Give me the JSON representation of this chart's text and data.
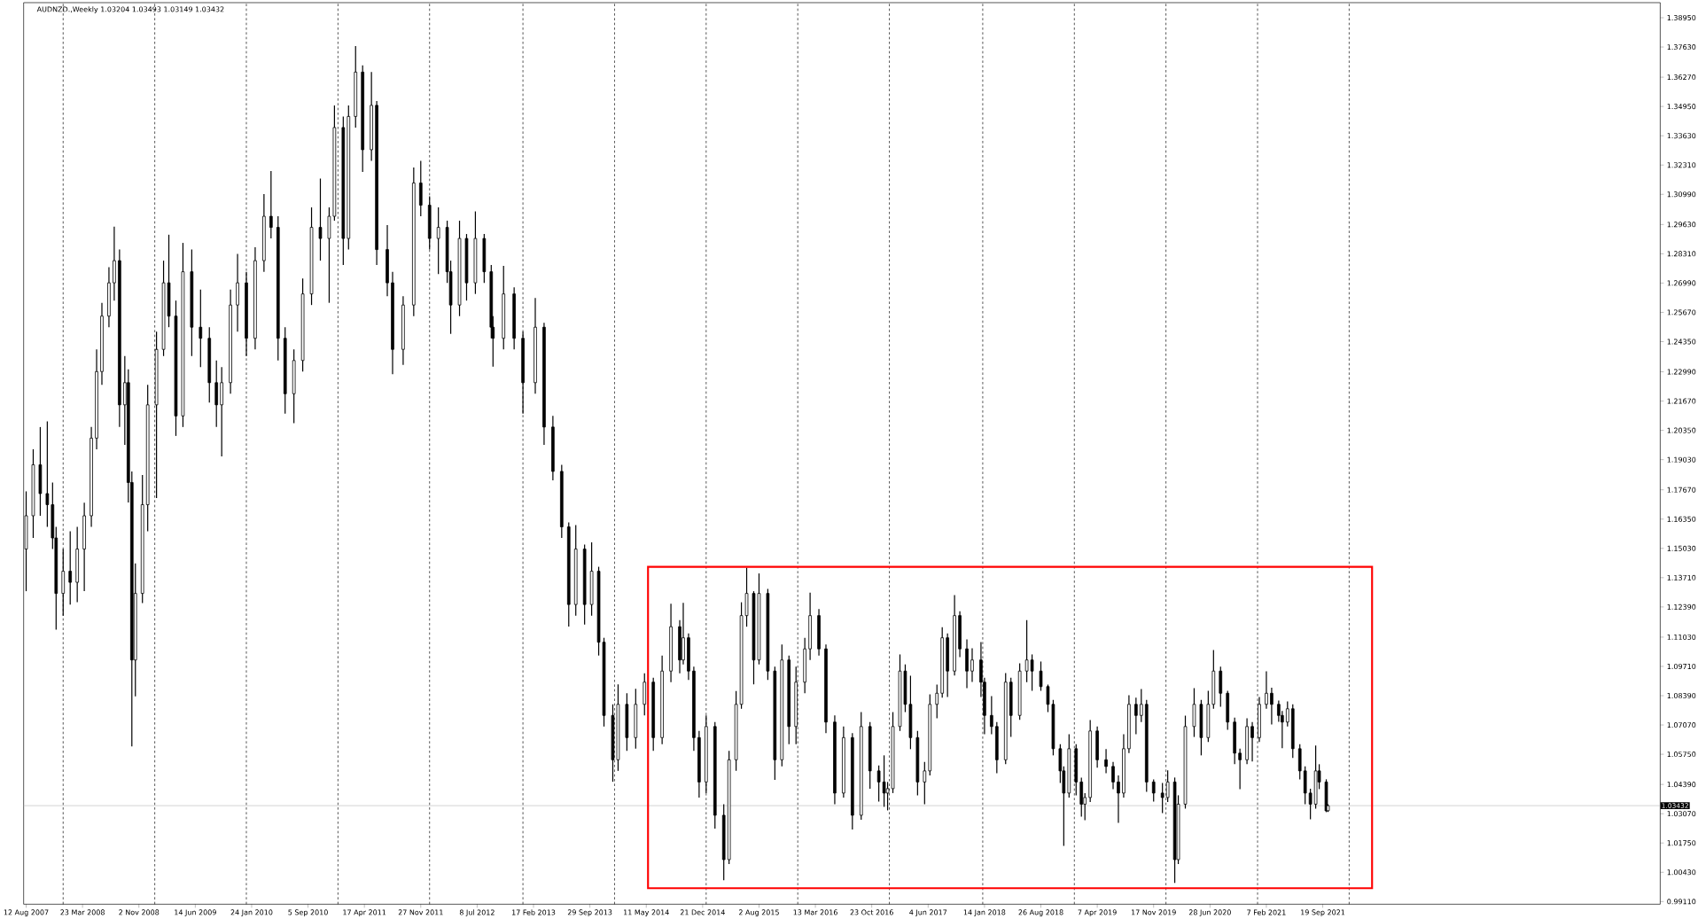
{
  "chart_data": {
    "type": "candlestick",
    "title": "AUDNZD.,Weekly 1.03204 1.03493 1.03149 1.03432",
    "xlim": [
      "2007-08-02",
      "2025-05-22"
    ],
    "ylim": [
      0.9899,
      1.3963
    ],
    "xticks": [
      {
        "value": "2007-08-12",
        "label": "12 Aug 2007"
      },
      {
        "value": "2008-03-23",
        "label": "23 Mar 2008"
      },
      {
        "value": "2008-11-02",
        "label": "2 Nov 2008"
      },
      {
        "value": "2009-06-14",
        "label": "14 Jun 2009"
      },
      {
        "value": "2010-01-24",
        "label": "24 Jan 2010"
      },
      {
        "value": "2010-09-05",
        "label": "5 Sep 2010"
      },
      {
        "value": "2011-04-17",
        "label": "17 Apr 2011"
      },
      {
        "value": "2011-11-27",
        "label": "27 Nov 2011"
      },
      {
        "value": "2012-07-08",
        "label": "8 Jul 2012"
      },
      {
        "value": "2013-02-17",
        "label": "17 Feb 2013"
      },
      {
        "value": "2013-09-29",
        "label": "29 Sep 2013"
      },
      {
        "value": "2014-05-11",
        "label": "11 May 2014"
      },
      {
        "value": "2014-12-21",
        "label": "21 Dec 2014"
      },
      {
        "value": "2015-08-02",
        "label": "2 Aug 2015"
      },
      {
        "value": "2016-03-13",
        "label": "13 Mar 2016"
      },
      {
        "value": "2016-10-23",
        "label": "23 Oct 2016"
      },
      {
        "value": "2017-06-04",
        "label": "4 Jun 2017"
      },
      {
        "value": "2018-01-14",
        "label": "14 Jan 2018"
      },
      {
        "value": "2018-08-26",
        "label": "26 Aug 2018"
      },
      {
        "value": "2019-04-07",
        "label": "7 Apr 2019"
      },
      {
        "value": "2019-11-17",
        "label": "17 Nov 2019"
      },
      {
        "value": "2020-06-28",
        "label": "28 Jun 2020"
      },
      {
        "value": "2021-02-07",
        "label": "7 Feb 2021"
      },
      {
        "value": "2021-09-19",
        "label": "19 Sep 2021"
      }
    ],
    "yticks": [
      {
        "value": 0.9911,
        "label": "0.99110"
      },
      {
        "value": 1.0043,
        "label": "1.00430"
      },
      {
        "value": 1.0175,
        "label": "1.01750"
      },
      {
        "value": 1.0307,
        "label": "1.03070"
      },
      {
        "value": 1.0439,
        "label": "1.04390"
      },
      {
        "value": 1.0575,
        "label": "1.05750"
      },
      {
        "value": 1.0707,
        "label": "1.07070"
      },
      {
        "value": 1.0839,
        "label": "1.08390"
      },
      {
        "value": 1.0971,
        "label": "1.09710"
      },
      {
        "value": 1.1103,
        "label": "1.11030"
      },
      {
        "value": 1.1239,
        "label": "1.12390"
      },
      {
        "value": 1.1371,
        "label": "1.13710"
      },
      {
        "value": 1.1503,
        "label": "1.15030"
      },
      {
        "value": 1.1635,
        "label": "1.16350"
      },
      {
        "value": 1.1767,
        "label": "1.17670"
      },
      {
        "value": 1.1903,
        "label": "1.19030"
      },
      {
        "value": 1.2035,
        "label": "1.20350"
      },
      {
        "value": 1.2167,
        "label": "1.21670"
      },
      {
        "value": 1.2299,
        "label": "1.22990"
      },
      {
        "value": 1.2435,
        "label": "1.24350"
      },
      {
        "value": 1.2567,
        "label": "1.25670"
      },
      {
        "value": 1.2699,
        "label": "1.26990"
      },
      {
        "value": 1.2831,
        "label": "1.28310"
      },
      {
        "value": 1.2963,
        "label": "1.29630"
      },
      {
        "value": 1.3099,
        "label": "1.30990"
      },
      {
        "value": 1.3231,
        "label": "1.32310"
      },
      {
        "value": 1.3363,
        "label": "1.33630"
      },
      {
        "value": 1.3495,
        "label": "1.34950"
      },
      {
        "value": 1.3627,
        "label": "1.36270"
      },
      {
        "value": 1.3763,
        "label": "1.37630"
      },
      {
        "value": 1.3895,
        "label": "1.38950"
      }
    ],
    "x": [
      "2007-08-12",
      "2007-09-09",
      "2007-10-07",
      "2007-11-04",
      "2007-11-25",
      "2007-12-09",
      "2008-01-06",
      "2008-02-03",
      "2008-03-02",
      "2008-03-30",
      "2008-04-27",
      "2008-05-18",
      "2008-06-08",
      "2008-07-06",
      "2008-07-27",
      "2008-08-17",
      "2008-09-07",
      "2008-09-21",
      "2008-10-05",
      "2008-10-19",
      "2008-11-16",
      "2008-12-07",
      "2009-01-11",
      "2009-02-08",
      "2009-03-01",
      "2009-03-29",
      "2009-04-26",
      "2009-05-31",
      "2009-07-05",
      "2009-08-09",
      "2009-09-06",
      "2009-09-27",
      "2009-11-01",
      "2009-11-29",
      "2010-01-03",
      "2010-02-07",
      "2010-03-14",
      "2010-04-11",
      "2010-05-09",
      "2010-06-06",
      "2010-07-11",
      "2010-08-15",
      "2010-09-19",
      "2010-10-24",
      "2010-11-28",
      "2010-12-19",
      "2011-01-23",
      "2011-02-13",
      "2011-03-13",
      "2011-04-10",
      "2011-05-15",
      "2011-06-05",
      "2011-07-17",
      "2011-08-07",
      "2011-09-18",
      "2011-10-30",
      "2011-11-27",
      "2012-01-01",
      "2012-02-05",
      "2012-03-11",
      "2012-03-25",
      "2012-04-29",
      "2012-05-27",
      "2012-07-01",
      "2012-08-05",
      "2012-09-02",
      "2012-09-09",
      "2012-10-21",
      "2012-12-02",
      "2013-01-06",
      "2013-02-24",
      "2013-03-31",
      "2013-05-05",
      "2013-06-09",
      "2013-07-07",
      "2013-08-04",
      "2013-09-08",
      "2013-10-06",
      "2013-11-03",
      "2013-11-24",
      "2013-12-29",
      "2014-01-19",
      "2014-02-23",
      "2014-03-30",
      "2014-05-04",
      "2014-06-08",
      "2014-07-13",
      "2014-08-17",
      "2014-09-21",
      "2014-10-05",
      "2014-10-26",
      "2014-11-16",
      "2014-12-07",
      "2015-01-04",
      "2015-02-08",
      "2015-03-15",
      "2015-04-05",
      "2015-05-03",
      "2015-05-24",
      "2015-06-14",
      "2015-07-12",
      "2015-08-02",
      "2015-09-06",
      "2015-10-04",
      "2015-11-01",
      "2015-11-29",
      "2015-12-27",
      "2016-01-31",
      "2016-02-21",
      "2016-03-27",
      "2016-04-24",
      "2016-05-29",
      "2016-07-03",
      "2016-08-07",
      "2016-09-11",
      "2016-10-16",
      "2016-11-20",
      "2016-12-11",
      "2016-12-25",
      "2017-01-15",
      "2017-02-12",
      "2017-03-05",
      "2017-03-26",
      "2017-04-23",
      "2017-05-21",
      "2017-06-11",
      "2017-07-09",
      "2017-07-30",
      "2017-08-20",
      "2017-09-17",
      "2017-10-08",
      "2017-11-05",
      "2017-11-26",
      "2017-12-31",
      "2018-01-14",
      "2018-02-11",
      "2018-03-04",
      "2018-04-08",
      "2018-04-29",
      "2018-06-03",
      "2018-07-01",
      "2018-07-22",
      "2018-08-26",
      "2018-09-23",
      "2018-10-14",
      "2018-11-11",
      "2018-11-25",
      "2018-12-16",
      "2019-01-13",
      "2019-02-03",
      "2019-02-17",
      "2019-03-10",
      "2019-04-07",
      "2019-05-12",
      "2019-06-09",
      "2019-06-30",
      "2019-07-21",
      "2019-08-11",
      "2019-09-08",
      "2019-09-29",
      "2019-10-20",
      "2019-11-17",
      "2019-12-22",
      "2020-01-12",
      "2020-02-09",
      "2020-02-23",
      "2020-03-22",
      "2020-04-26",
      "2020-05-24",
      "2020-06-21",
      "2020-07-12",
      "2020-08-09",
      "2020-09-06",
      "2020-10-04",
      "2020-10-25",
      "2020-11-22",
      "2020-12-13",
      "2021-01-10",
      "2021-02-07",
      "2021-02-28",
      "2021-03-28",
      "2021-04-11",
      "2021-05-02",
      "2021-05-23",
      "2021-06-20",
      "2021-07-11",
      "2021-08-01",
      "2021-08-22",
      "2021-09-05",
      "2021-10-03",
      "2021-10-10"
    ],
    "ohlc": [
      [
        1.15,
        1.176,
        1.131,
        1.165
      ],
      [
        1.165,
        1.195,
        1.155,
        1.188
      ],
      [
        1.188,
        1.205,
        1.165,
        1.175
      ],
      [
        1.175,
        1.2075,
        1.16,
        1.17
      ],
      [
        1.17,
        1.18,
        1.15,
        1.155
      ],
      [
        1.155,
        1.16,
        1.1137,
        1.13
      ],
      [
        1.13,
        1.15,
        1.12,
        1.14
      ],
      [
        1.14,
        1.158,
        1.125,
        1.135
      ],
      [
        1.135,
        1.16,
        1.126,
        1.15
      ],
      [
        1.15,
        1.1709,
        1.131,
        1.165
      ],
      [
        1.165,
        1.205,
        1.16,
        1.2
      ],
      [
        1.2,
        1.24,
        1.195,
        1.23
      ],
      [
        1.23,
        1.261,
        1.224,
        1.255
      ],
      [
        1.255,
        1.277,
        1.25,
        1.27
      ],
      [
        1.27,
        1.2953,
        1.262,
        1.28
      ],
      [
        1.28,
        1.285,
        1.205,
        1.215
      ],
      [
        1.215,
        1.237,
        1.197,
        1.225
      ],
      [
        1.225,
        1.231,
        1.171,
        1.18
      ],
      [
        1.18,
        1.185,
        1.061,
        1.1
      ],
      [
        1.1,
        1.1435,
        1.0836,
        1.13
      ],
      [
        1.13,
        1.1834,
        1.1256,
        1.17
      ],
      [
        1.17,
        1.224,
        1.158,
        1.215
      ],
      [
        1.215,
        1.248,
        1.173,
        1.24
      ],
      [
        1.24,
        1.28,
        1.237,
        1.27
      ],
      [
        1.27,
        1.2917,
        1.25,
        1.255
      ],
      [
        1.255,
        1.262,
        1.201,
        1.21
      ],
      [
        1.21,
        1.288,
        1.205,
        1.275
      ],
      [
        1.275,
        1.285,
        1.237,
        1.25
      ],
      [
        1.25,
        1.267,
        1.232,
        1.245
      ],
      [
        1.245,
        1.25,
        1.216,
        1.225
      ],
      [
        1.225,
        1.235,
        1.205,
        1.215
      ],
      [
        1.215,
        1.232,
        1.1918,
        1.225
      ],
      [
        1.225,
        1.267,
        1.22,
        1.26
      ],
      [
        1.26,
        1.283,
        1.248,
        1.27
      ],
      [
        1.27,
        1.275,
        1.237,
        1.245
      ],
      [
        1.245,
        1.286,
        1.24,
        1.28
      ],
      [
        1.28,
        1.31,
        1.275,
        1.3
      ],
      [
        1.3,
        1.3204,
        1.29,
        1.295
      ],
      [
        1.295,
        1.3,
        1.235,
        1.245
      ],
      [
        1.245,
        1.25,
        1.211,
        1.22
      ],
      [
        1.22,
        1.24,
        1.2067,
        1.235
      ],
      [
        1.235,
        1.272,
        1.23,
        1.265
      ],
      [
        1.265,
        1.304,
        1.26,
        1.295
      ],
      [
        1.295,
        1.317,
        1.28,
        1.29
      ],
      [
        1.29,
        1.304,
        1.261,
        1.3
      ],
      [
        1.3,
        1.35,
        1.298,
        1.34
      ],
      [
        1.34,
        1.345,
        1.278,
        1.29
      ],
      [
        1.29,
        1.35,
        1.285,
        1.345
      ],
      [
        1.345,
        1.3767,
        1.34,
        1.365
      ],
      [
        1.365,
        1.368,
        1.32,
        1.33
      ],
      [
        1.33,
        1.365,
        1.325,
        1.35
      ],
      [
        1.35,
        1.352,
        1.278,
        1.285
      ],
      [
        1.285,
        1.296,
        1.264,
        1.27
      ],
      [
        1.27,
        1.275,
        1.2288,
        1.24
      ],
      [
        1.24,
        1.264,
        1.233,
        1.26
      ],
      [
        1.26,
        1.322,
        1.255,
        1.315
      ],
      [
        1.315,
        1.325,
        1.3,
        1.305
      ],
      [
        1.305,
        1.309,
        1.285,
        1.29
      ],
      [
        1.29,
        1.304,
        1.274,
        1.295
      ],
      [
        1.295,
        1.298,
        1.27,
        1.275
      ],
      [
        1.275,
        1.28,
        1.247,
        1.26
      ],
      [
        1.26,
        1.298,
        1.255,
        1.29
      ],
      [
        1.29,
        1.292,
        1.262,
        1.27
      ],
      [
        1.27,
        1.3022,
        1.265,
        1.29
      ],
      [
        1.29,
        1.292,
        1.27,
        1.275
      ],
      [
        1.275,
        1.278,
        1.245,
        1.25
      ],
      [
        1.25,
        1.255,
        1.2322,
        1.245
      ],
      [
        1.245,
        1.2776,
        1.24,
        1.265
      ],
      [
        1.265,
        1.268,
        1.24,
        1.245
      ],
      [
        1.245,
        1.248,
        1.211,
        1.225
      ],
      [
        1.225,
        1.2632,
        1.22,
        1.25
      ],
      [
        1.25,
        1.252,
        1.197,
        1.205
      ],
      [
        1.205,
        1.21,
        1.181,
        1.185
      ],
      [
        1.185,
        1.188,
        1.155,
        1.16
      ],
      [
        1.16,
        1.162,
        1.1151,
        1.125
      ],
      [
        1.125,
        1.1608,
        1.12,
        1.15
      ],
      [
        1.15,
        1.152,
        1.116,
        1.125
      ],
      [
        1.125,
        1.153,
        1.12,
        1.14
      ],
      [
        1.14,
        1.142,
        1.102,
        1.108
      ],
      [
        1.108,
        1.11,
        1.07,
        1.075
      ],
      [
        1.075,
        1.08,
        1.0451,
        1.055
      ],
      [
        1.055,
        1.089,
        1.05,
        1.08
      ],
      [
        1.08,
        1.085,
        1.059,
        1.065
      ],
      [
        1.065,
        1.087,
        1.06,
        1.08
      ],
      [
        1.08,
        1.094,
        1.075,
        1.09
      ],
      [
        1.09,
        1.092,
        1.059,
        1.065
      ],
      [
        1.065,
        1.102,
        1.062,
        1.095
      ],
      [
        1.095,
        1.1253,
        1.09,
        1.115
      ],
      [
        1.115,
        1.118,
        1.094,
        1.1
      ],
      [
        1.1,
        1.1257,
        1.098,
        1.11
      ],
      [
        1.11,
        1.112,
        1.091,
        1.095
      ],
      [
        1.095,
        1.097,
        1.059,
        1.065
      ],
      [
        1.065,
        1.068,
        1.038,
        1.045
      ],
      [
        1.045,
        1.075,
        1.04,
        1.07
      ],
      [
        1.07,
        1.072,
        1.024,
        1.03
      ],
      [
        1.03,
        1.035,
        1.0007,
        1.01
      ],
      [
        1.01,
        1.059,
        1.008,
        1.055
      ],
      [
        1.055,
        1.086,
        1.05,
        1.08
      ],
      [
        1.08,
        1.126,
        1.078,
        1.12
      ],
      [
        1.12,
        1.1416,
        1.115,
        1.13
      ],
      [
        1.13,
        1.131,
        1.089,
        1.1
      ],
      [
        1.1,
        1.139,
        1.098,
        1.13
      ],
      [
        1.13,
        1.132,
        1.091,
        1.095
      ],
      [
        1.095,
        1.097,
        1.046,
        1.055
      ],
      [
        1.055,
        1.107,
        1.052,
        1.1
      ],
      [
        1.1,
        1.102,
        1.062,
        1.07
      ],
      [
        1.07,
        1.097,
        1.062,
        1.09
      ],
      [
        1.09,
        1.11,
        1.085,
        1.105
      ],
      [
        1.105,
        1.1303,
        1.1,
        1.12
      ],
      [
        1.12,
        1.123,
        1.102,
        1.105
      ],
      [
        1.105,
        1.107,
        1.067,
        1.072
      ],
      [
        1.072,
        1.075,
        1.035,
        1.04
      ],
      [
        1.04,
        1.07,
        1.038,
        1.065
      ],
      [
        1.065,
        1.067,
        1.0236,
        1.03
      ],
      [
        1.03,
        1.0765,
        1.028,
        1.07
      ],
      [
        1.07,
        1.072,
        1.042,
        1.05
      ],
      [
        1.05,
        1.0524,
        1.0362,
        1.045
      ],
      [
        1.045,
        1.057,
        1.0338,
        1.04
      ],
      [
        1.04,
        1.045,
        1.0322,
        1.042
      ],
      [
        1.042,
        1.0765,
        1.04,
        1.07
      ],
      [
        1.07,
        1.1025,
        1.068,
        1.095
      ],
      [
        1.095,
        1.098,
        1.0765,
        1.08
      ],
      [
        1.08,
        1.0929,
        1.0598,
        1.065
      ],
      [
        1.065,
        1.068,
        1.039,
        1.045
      ],
      [
        1.045,
        1.054,
        1.035,
        1.05
      ],
      [
        1.05,
        1.0845,
        1.048,
        1.08
      ],
      [
        1.08,
        1.0889,
        1.0737,
        1.085
      ],
      [
        1.085,
        1.1148,
        1.083,
        1.11
      ],
      [
        1.11,
        1.112,
        1.0833,
        1.095
      ],
      [
        1.095,
        1.1292,
        1.093,
        1.12
      ],
      [
        1.12,
        1.122,
        1.1013,
        1.105
      ],
      [
        1.105,
        1.1093,
        1.0873,
        1.095
      ],
      [
        1.095,
        1.1053,
        1.0901,
        1.1
      ],
      [
        1.1,
        1.1081,
        1.0833,
        1.09
      ],
      [
        1.09,
        1.092,
        1.0665,
        1.075
      ],
      [
        1.075,
        1.0837,
        1.0665,
        1.07
      ],
      [
        1.07,
        1.072,
        1.049,
        1.055
      ],
      [
        1.055,
        1.0941,
        1.053,
        1.09
      ],
      [
        1.09,
        1.092,
        1.0653,
        1.075
      ],
      [
        1.075,
        1.0985,
        1.073,
        1.095
      ],
      [
        1.095,
        1.118,
        1.09,
        1.1
      ],
      [
        1.1,
        1.1025,
        1.0861,
        1.095
      ],
      [
        1.095,
        1.0993,
        1.0861,
        1.088
      ],
      [
        1.088,
        1.0889,
        1.0765,
        1.08
      ],
      [
        1.08,
        1.082,
        1.057,
        1.06
      ],
      [
        1.06,
        1.062,
        1.0446,
        1.05
      ],
      [
        1.05,
        1.052,
        1.0162,
        1.04
      ],
      [
        1.04,
        1.0665,
        1.038,
        1.06
      ],
      [
        1.06,
        1.062,
        1.039,
        1.045
      ],
      [
        1.045,
        1.047,
        1.0294,
        1.035
      ],
      [
        1.035,
        1.04,
        1.0278,
        1.038
      ],
      [
        1.038,
        1.0729,
        1.036,
        1.068
      ],
      [
        1.068,
        1.07,
        1.0514,
        1.055
      ],
      [
        1.055,
        1.0598,
        1.049,
        1.052
      ],
      [
        1.052,
        1.054,
        1.0418,
        1.045
      ],
      [
        1.045,
        1.048,
        1.0266,
        1.04
      ],
      [
        1.04,
        1.0665,
        1.038,
        1.06
      ],
      [
        1.06,
        1.0841,
        1.058,
        1.08
      ],
      [
        1.08,
        1.083,
        1.0665,
        1.075
      ],
      [
        1.075,
        1.0869,
        1.072,
        1.08
      ],
      [
        1.08,
        1.082,
        1.0406,
        1.045
      ],
      [
        1.045,
        1.0462,
        1.0362,
        1.04
      ],
      [
        1.04,
        1.0446,
        1.031,
        1.038
      ],
      [
        1.038,
        1.0502,
        1.036,
        1.045
      ],
      [
        1.045,
        1.047,
        0.9995,
        1.01
      ],
      [
        1.01,
        1.039,
        1.008,
        1.035
      ],
      [
        1.035,
        1.0749,
        1.033,
        1.07
      ],
      [
        1.07,
        1.0873,
        1.0653,
        1.08
      ],
      [
        1.08,
        1.082,
        1.057,
        1.065
      ],
      [
        1.065,
        1.0861,
        1.063,
        1.08
      ],
      [
        1.08,
        1.1045,
        1.078,
        1.095
      ],
      [
        1.095,
        1.097,
        1.0789,
        1.085
      ],
      [
        1.085,
        1.0861,
        1.0685,
        1.072
      ],
      [
        1.072,
        1.074,
        1.053,
        1.058
      ],
      [
        1.058,
        1.06,
        1.0418,
        1.055
      ],
      [
        1.055,
        1.0737,
        1.053,
        1.07
      ],
      [
        1.07,
        1.072,
        1.0542,
        1.065
      ],
      [
        1.065,
        1.0833,
        1.063,
        1.08
      ],
      [
        1.08,
        1.0949,
        1.078,
        1.085
      ],
      [
        1.085,
        1.0875,
        1.0709,
        1.08
      ],
      [
        1.08,
        1.0817,
        1.0721,
        1.075
      ],
      [
        1.075,
        1.077,
        1.0602,
        1.072
      ],
      [
        1.072,
        1.0813,
        1.07,
        1.078
      ],
      [
        1.078,
        1.08,
        1.0558,
        1.06
      ],
      [
        1.06,
        1.062,
        1.0462,
        1.05
      ],
      [
        1.05,
        1.052,
        1.035,
        1.04
      ],
      [
        1.04,
        1.042,
        1.0282,
        1.035
      ],
      [
        1.035,
        1.0614,
        1.033,
        1.05
      ],
      [
        1.05,
        1.053,
        1.0418,
        1.045
      ],
      [
        1.045,
        1.0462,
        1.0314,
        1.032
      ],
      [
        1.03204,
        1.03493,
        1.03149,
        1.03432
      ]
    ],
    "ref_lines": [
      {
        "axis": "y",
        "value": 1.03432,
        "label": "1.03432",
        "color": "#c0c0c0",
        "line_style": "solid"
      },
      {
        "axis": "x",
        "value": "2008-01-06",
        "color": "#000000",
        "line_style": "dashed"
      },
      {
        "axis": "x",
        "value": "2009-01-04",
        "color": "#000000",
        "line_style": "dashed"
      },
      {
        "axis": "x",
        "value": "2010-01-03",
        "color": "#000000",
        "line_style": "dashed"
      },
      {
        "axis": "x",
        "value": "2011-01-02",
        "color": "#000000",
        "line_style": "dashed"
      },
      {
        "axis": "x",
        "value": "2012-01-01",
        "color": "#000000",
        "line_style": "dashed"
      },
      {
        "axis": "x",
        "value": "2013-01-06",
        "color": "#000000",
        "line_style": "dashed"
      },
      {
        "axis": "x",
        "value": "2014-01-05",
        "color": "#000000",
        "line_style": "dashed"
      },
      {
        "axis": "x",
        "value": "2015-01-04",
        "color": "#000000",
        "line_style": "dashed"
      },
      {
        "axis": "x",
        "value": "2016-01-03",
        "color": "#000000",
        "line_style": "dashed"
      },
      {
        "axis": "x",
        "value": "2017-01-01",
        "color": "#000000",
        "line_style": "dashed"
      },
      {
        "axis": "x",
        "value": "2018-01-07",
        "color": "#000000",
        "line_style": "dashed"
      },
      {
        "axis": "x",
        "value": "2019-01-06",
        "color": "#000000",
        "line_style": "dashed"
      },
      {
        "axis": "x",
        "value": "2020-01-05",
        "color": "#000000",
        "line_style": "dashed"
      },
      {
        "axis": "x",
        "value": "2021-01-03",
        "color": "#000000",
        "line_style": "dashed"
      },
      {
        "axis": "x",
        "value": "2022-01-02",
        "color": "#000000",
        "line_style": "dashed"
      }
    ]
  }
}
